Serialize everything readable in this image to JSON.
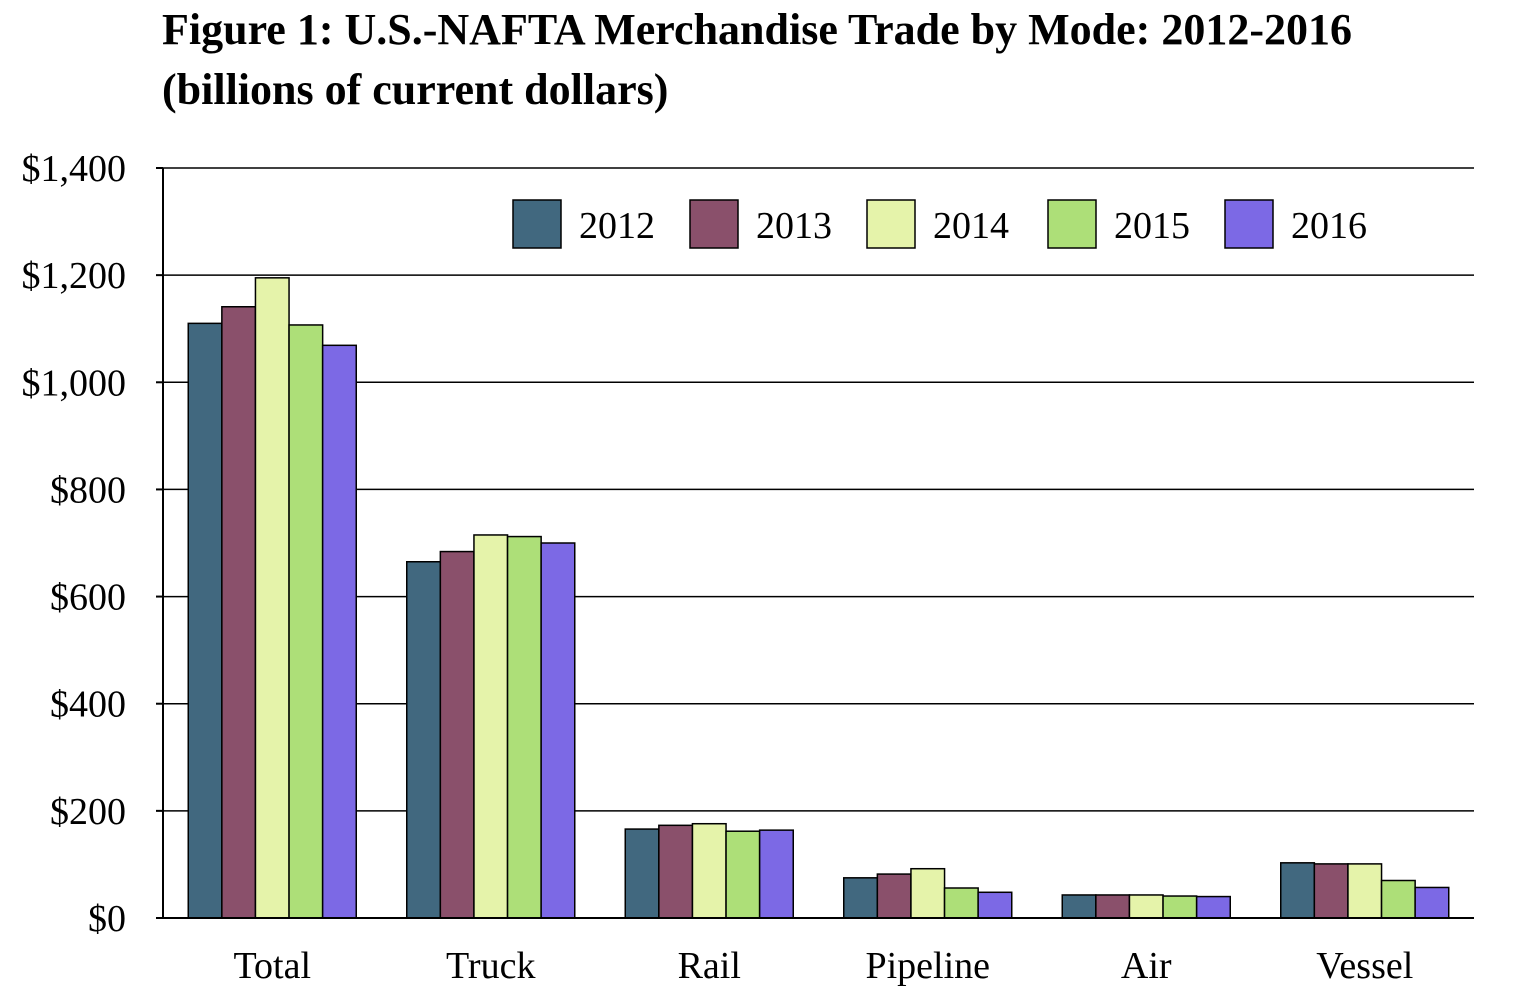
{
  "chart_data": {
    "type": "bar",
    "title": "Figure 1: U.S.-NAFTA Merchandise Trade by Mode: 2012-2016",
    "subtitle": "(billions of current dollars)",
    "xlabel": "",
    "ylabel": "",
    "ylim": [
      0,
      1400
    ],
    "yticks": [
      0,
      200,
      400,
      600,
      800,
      1000,
      1200,
      1400
    ],
    "ytick_labels": [
      "$0",
      "$200",
      "$400",
      "$600",
      "$800",
      "$1,000",
      "$1,200",
      "$1,400"
    ],
    "grid": true,
    "legend_position": "top-right",
    "categories": [
      "Total",
      "Truck",
      "Rail",
      "Pipeline",
      "Air",
      "Vessel"
    ],
    "series": [
      {
        "name": "2012",
        "color": "#41687F",
        "values": [
          1110,
          665,
          166,
          75,
          43,
          103
        ]
      },
      {
        "name": "2013",
        "color": "#8A506B",
        "values": [
          1141,
          684,
          173,
          82,
          43,
          101
        ]
      },
      {
        "name": "2014",
        "color": "#E5F3AA",
        "values": [
          1195,
          715,
          176,
          92,
          43,
          101
        ]
      },
      {
        "name": "2015",
        "color": "#ADDF78",
        "values": [
          1107,
          712,
          162,
          56,
          41,
          70
        ]
      },
      {
        "name": "2016",
        "color": "#7C69E5",
        "values": [
          1069,
          700,
          164,
          48,
          40,
          57
        ]
      }
    ]
  }
}
